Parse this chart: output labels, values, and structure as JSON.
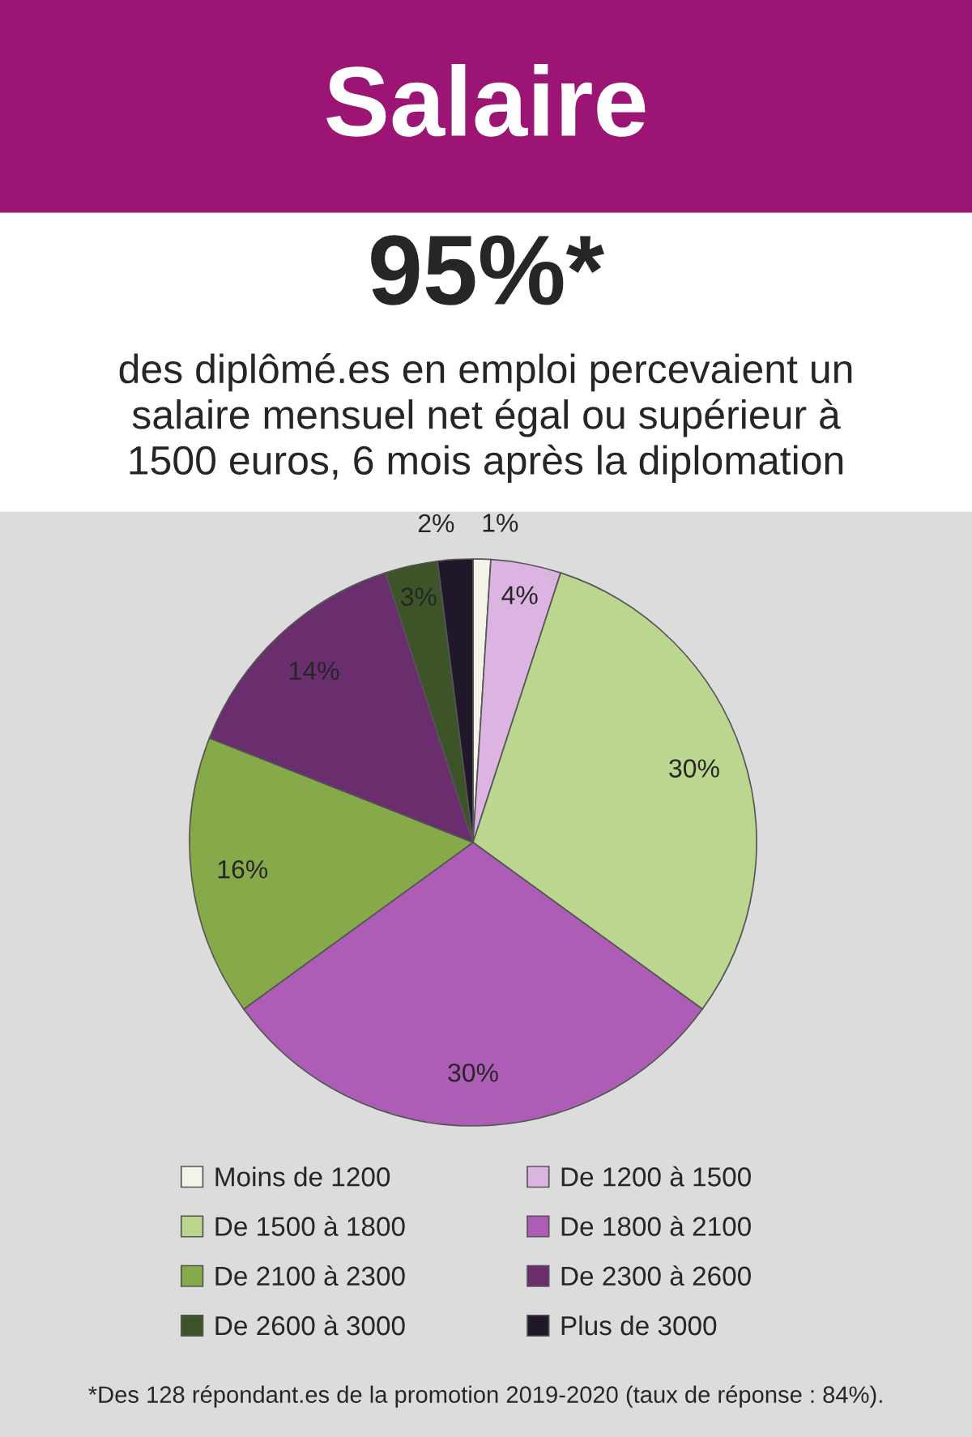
{
  "chart_data": {
    "type": "pie",
    "title": "Salaire",
    "subtitle": "des diplômé.es en emploi percevaient un\nsalaire mensuel net égal ou supérieur à\n1500 euros, 6 mois après la diplomation",
    "categories": [
      "Moins de 1200",
      "De 1200 à 1500",
      "De 1500 à 1800",
      "De 1800 à 2100",
      "De 2100 à 2300",
      "De 2300 à 2600",
      "De 2600 à 3000",
      "Plus de 3000"
    ],
    "values": [
      1,
      4,
      30,
      30,
      16,
      14,
      3,
      2
    ],
    "colors": [
      "#f4f3e8",
      "#dcb4e2",
      "#bad68f",
      "#ad5db5",
      "#86aa4a",
      "#6a2e6f",
      "#3d5428",
      "#21172a"
    ],
    "value_labels": [
      "1%",
      "4%",
      "30%",
      "30%",
      "16%",
      "14%",
      "3%",
      "2%"
    ],
    "legend": "bottom",
    "annotations": [
      "95%*",
      "*Des 128 répondant.es de la promotion 2019-2020 (taux de réponse : 84%)."
    ]
  }
}
